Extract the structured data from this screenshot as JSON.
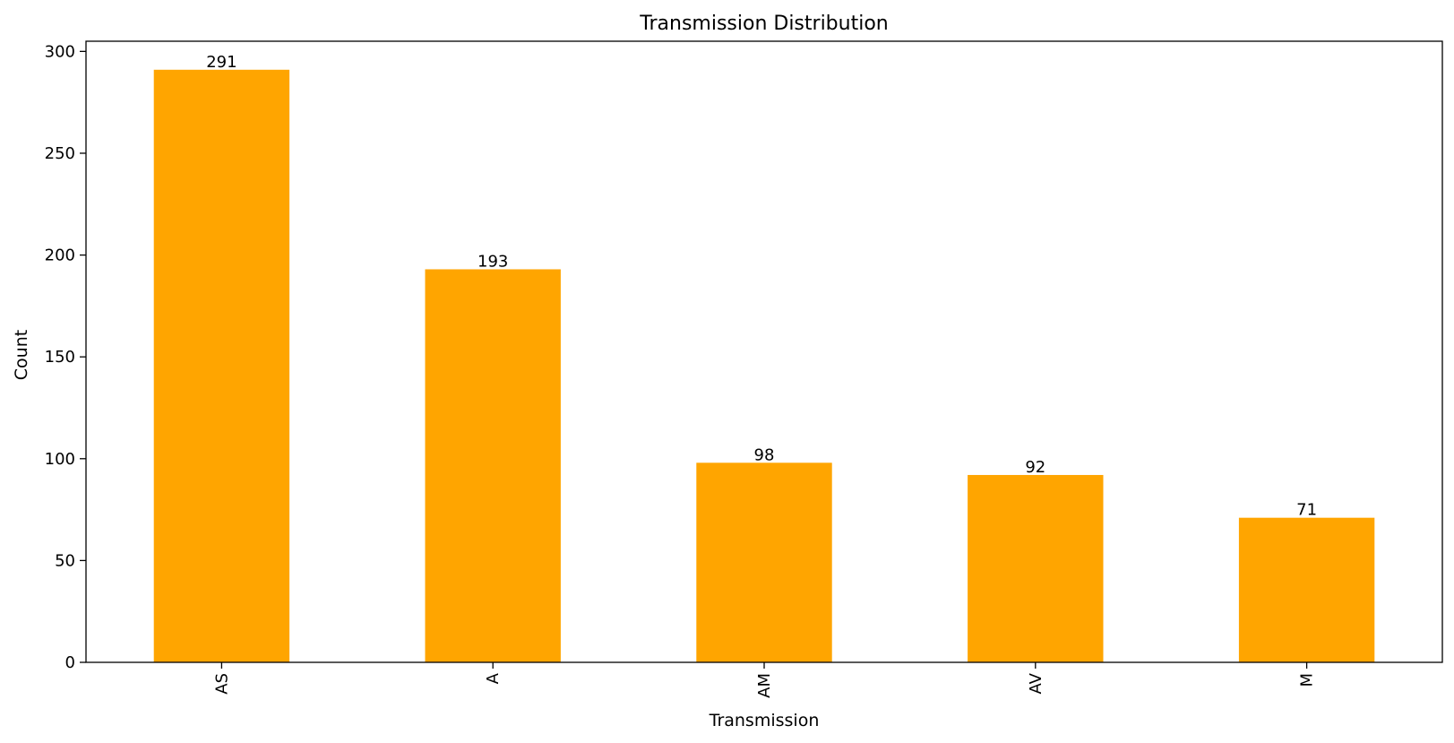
{
  "chart_data": {
    "type": "bar",
    "title": "Transmission Distribution",
    "xlabel": "Transmission",
    "ylabel": "Count",
    "categories": [
      "AS",
      "A",
      "AM",
      "AV",
      "M"
    ],
    "values": [
      291,
      193,
      98,
      92,
      71
    ],
    "ylim": [
      0,
      305
    ],
    "yticks": [
      0,
      50,
      100,
      150,
      200,
      250,
      300
    ],
    "bar_color": "#ffa500",
    "grid": false,
    "legend": false,
    "x_tick_rotation": 90,
    "show_data_labels": true
  }
}
